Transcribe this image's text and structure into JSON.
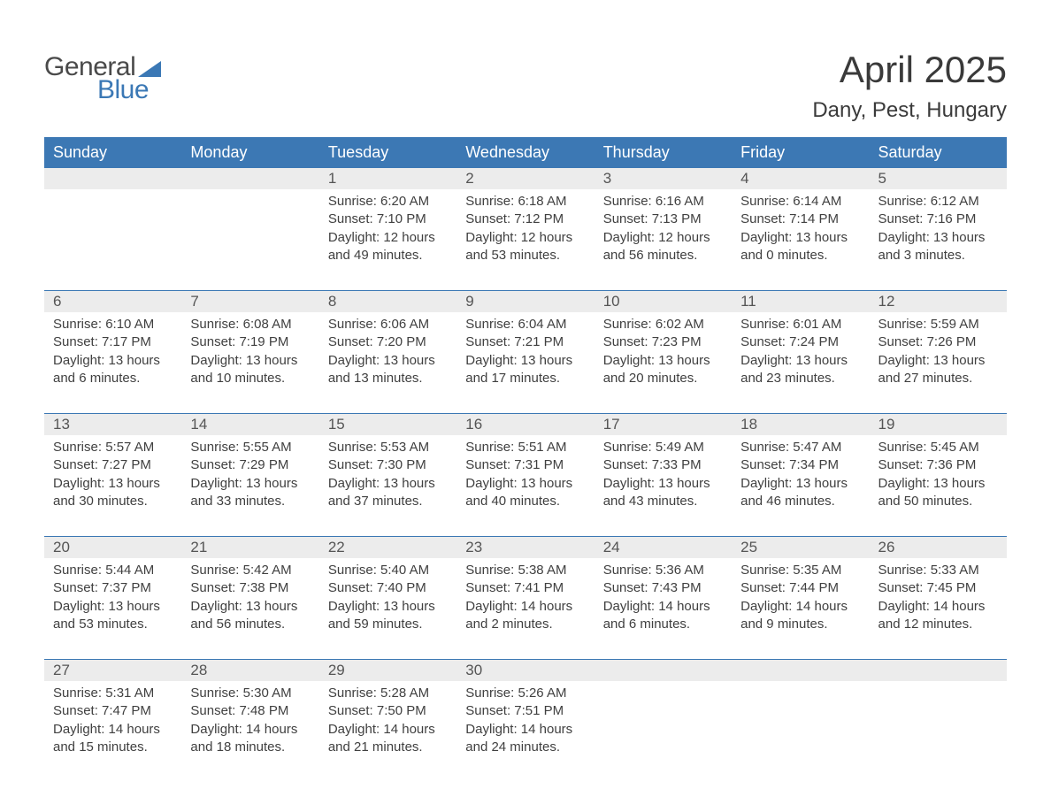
{
  "logo": {
    "word1": "General",
    "word2": "Blue"
  },
  "title": "April 2025",
  "location": "Dany, Pest, Hungary",
  "colors": {
    "header_blue": "#3c78b4",
    "band_gray": "#ececec",
    "text": "#404040",
    "logo_blue": "#3b78b5"
  },
  "dow": [
    "Sunday",
    "Monday",
    "Tuesday",
    "Wednesday",
    "Thursday",
    "Friday",
    "Saturday"
  ],
  "weeks": [
    [
      null,
      null,
      {
        "n": "1",
        "sr": "6:20 AM",
        "ss": "7:10 PM",
        "dl": "12 hours and 49 minutes."
      },
      {
        "n": "2",
        "sr": "6:18 AM",
        "ss": "7:12 PM",
        "dl": "12 hours and 53 minutes."
      },
      {
        "n": "3",
        "sr": "6:16 AM",
        "ss": "7:13 PM",
        "dl": "12 hours and 56 minutes."
      },
      {
        "n": "4",
        "sr": "6:14 AM",
        "ss": "7:14 PM",
        "dl": "13 hours and 0 minutes."
      },
      {
        "n": "5",
        "sr": "6:12 AM",
        "ss": "7:16 PM",
        "dl": "13 hours and 3 minutes."
      }
    ],
    [
      {
        "n": "6",
        "sr": "6:10 AM",
        "ss": "7:17 PM",
        "dl": "13 hours and 6 minutes."
      },
      {
        "n": "7",
        "sr": "6:08 AM",
        "ss": "7:19 PM",
        "dl": "13 hours and 10 minutes."
      },
      {
        "n": "8",
        "sr": "6:06 AM",
        "ss": "7:20 PM",
        "dl": "13 hours and 13 minutes."
      },
      {
        "n": "9",
        "sr": "6:04 AM",
        "ss": "7:21 PM",
        "dl": "13 hours and 17 minutes."
      },
      {
        "n": "10",
        "sr": "6:02 AM",
        "ss": "7:23 PM",
        "dl": "13 hours and 20 minutes."
      },
      {
        "n": "11",
        "sr": "6:01 AM",
        "ss": "7:24 PM",
        "dl": "13 hours and 23 minutes."
      },
      {
        "n": "12",
        "sr": "5:59 AM",
        "ss": "7:26 PM",
        "dl": "13 hours and 27 minutes."
      }
    ],
    [
      {
        "n": "13",
        "sr": "5:57 AM",
        "ss": "7:27 PM",
        "dl": "13 hours and 30 minutes."
      },
      {
        "n": "14",
        "sr": "5:55 AM",
        "ss": "7:29 PM",
        "dl": "13 hours and 33 minutes."
      },
      {
        "n": "15",
        "sr": "5:53 AM",
        "ss": "7:30 PM",
        "dl": "13 hours and 37 minutes."
      },
      {
        "n": "16",
        "sr": "5:51 AM",
        "ss": "7:31 PM",
        "dl": "13 hours and 40 minutes."
      },
      {
        "n": "17",
        "sr": "5:49 AM",
        "ss": "7:33 PM",
        "dl": "13 hours and 43 minutes."
      },
      {
        "n": "18",
        "sr": "5:47 AM",
        "ss": "7:34 PM",
        "dl": "13 hours and 46 minutes."
      },
      {
        "n": "19",
        "sr": "5:45 AM",
        "ss": "7:36 PM",
        "dl": "13 hours and 50 minutes."
      }
    ],
    [
      {
        "n": "20",
        "sr": "5:44 AM",
        "ss": "7:37 PM",
        "dl": "13 hours and 53 minutes."
      },
      {
        "n": "21",
        "sr": "5:42 AM",
        "ss": "7:38 PM",
        "dl": "13 hours and 56 minutes."
      },
      {
        "n": "22",
        "sr": "5:40 AM",
        "ss": "7:40 PM",
        "dl": "13 hours and 59 minutes."
      },
      {
        "n": "23",
        "sr": "5:38 AM",
        "ss": "7:41 PM",
        "dl": "14 hours and 2 minutes."
      },
      {
        "n": "24",
        "sr": "5:36 AM",
        "ss": "7:43 PM",
        "dl": "14 hours and 6 minutes."
      },
      {
        "n": "25",
        "sr": "5:35 AM",
        "ss": "7:44 PM",
        "dl": "14 hours and 9 minutes."
      },
      {
        "n": "26",
        "sr": "5:33 AM",
        "ss": "7:45 PM",
        "dl": "14 hours and 12 minutes."
      }
    ],
    [
      {
        "n": "27",
        "sr": "5:31 AM",
        "ss": "7:47 PM",
        "dl": "14 hours and 15 minutes."
      },
      {
        "n": "28",
        "sr": "5:30 AM",
        "ss": "7:48 PM",
        "dl": "14 hours and 18 minutes."
      },
      {
        "n": "29",
        "sr": "5:28 AM",
        "ss": "7:50 PM",
        "dl": "14 hours and 21 minutes."
      },
      {
        "n": "30",
        "sr": "5:26 AM",
        "ss": "7:51 PM",
        "dl": "14 hours and 24 minutes."
      },
      null,
      null,
      null
    ]
  ],
  "labels": {
    "sunrise": "Sunrise:",
    "sunset": "Sunset:",
    "daylight": "Daylight:"
  }
}
